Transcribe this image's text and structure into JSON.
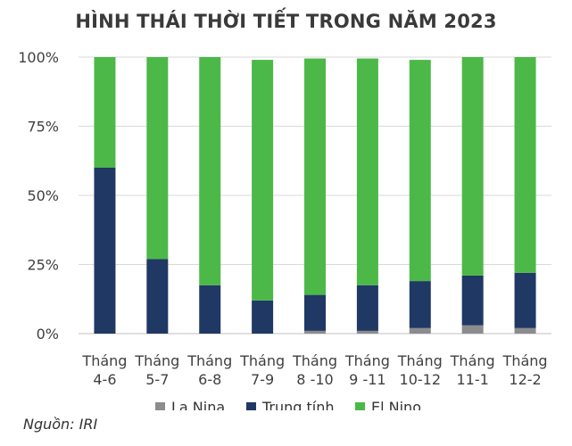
{
  "title": "HÌNH THÁI THỜI TIẾT TRONG NĂM 2023",
  "source": "Nguồn: IRI",
  "colors": {
    "la_nina": "#8c8c8c",
    "trung_tinh": "#203864",
    "el_nino": "#4cb848",
    "grid": "#d9d9d9"
  },
  "chart_data": {
    "type": "bar",
    "stacked": true,
    "categories": [
      [
        "Tháng",
        "4-6"
      ],
      [
        "Tháng",
        "5-7"
      ],
      [
        "Tháng",
        "6-8"
      ],
      [
        "Tháng",
        "7-9"
      ],
      [
        "Tháng",
        "8 -10"
      ],
      [
        "Tháng",
        "9 -11"
      ],
      [
        "Tháng",
        "10-12"
      ],
      [
        "Tháng",
        "11-1"
      ],
      [
        "Tháng",
        "12-2"
      ]
    ],
    "series": [
      {
        "name": "La Nina",
        "values": [
          0,
          0,
          0,
          0,
          1,
          1,
          2,
          3,
          2
        ]
      },
      {
        "name": "Trung tính",
        "values": [
          60,
          27,
          17.5,
          12,
          13,
          16.5,
          17,
          18,
          20
        ]
      },
      {
        "name": "El Nino",
        "values": [
          40,
          73,
          82.5,
          87,
          85.5,
          82,
          80,
          79,
          78
        ]
      }
    ],
    "ylim": [
      0,
      100
    ],
    "yticks": [
      "0%",
      "25%",
      "50%",
      "75%",
      "100%"
    ],
    "ytick_values": [
      0,
      25,
      50,
      75,
      100
    ],
    "grid": true,
    "legend": "bottom"
  }
}
